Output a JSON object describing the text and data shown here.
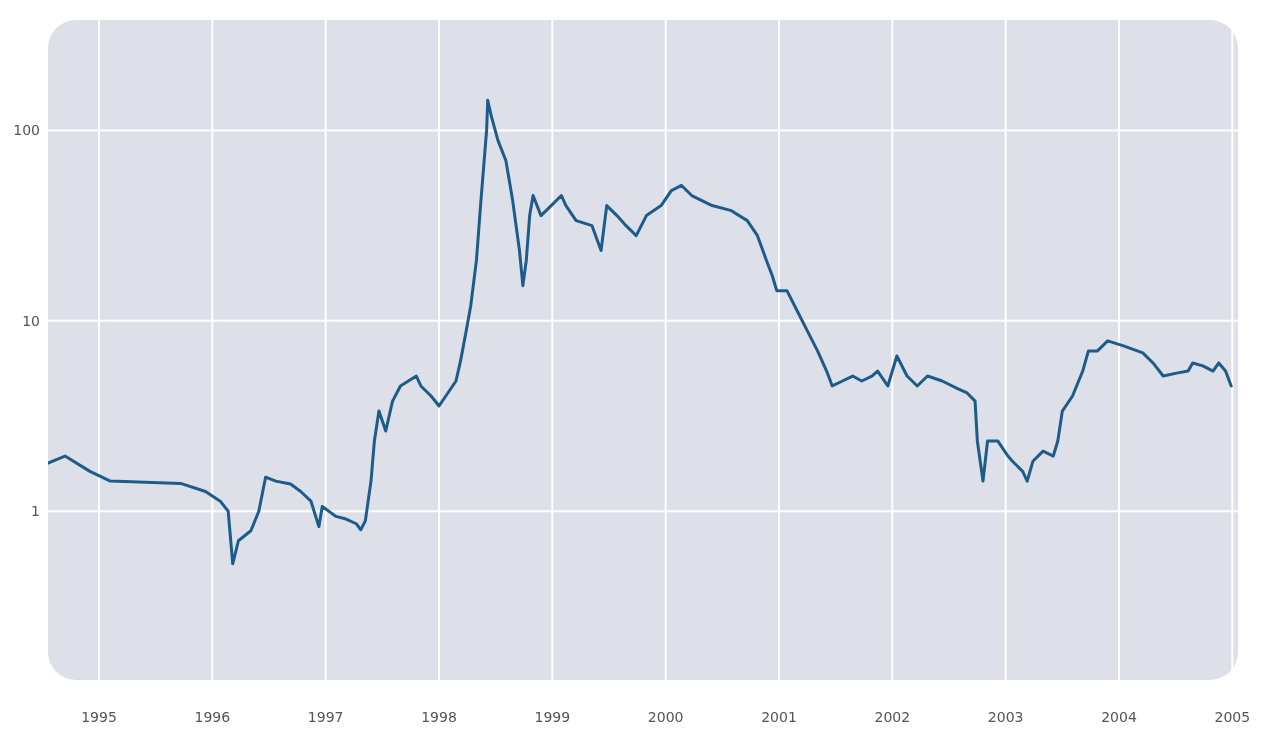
{
  "chart_data": {
    "type": "line",
    "log": "y",
    "grid": true,
    "xlim": [
      1994.55,
      2005.05
    ],
    "ylim": [
      0.13,
      380
    ],
    "xticks": [
      1995,
      1996,
      1997,
      1998,
      1999,
      2000,
      2001,
      2002,
      2003,
      2004,
      2005
    ],
    "yticks": [
      1,
      10,
      100
    ],
    "x": [
      1994.55,
      1994.7,
      1994.92,
      1995.1,
      1995.72,
      1995.94,
      1996.07,
      1996.14,
      1996.18,
      1996.23,
      1996.34,
      1996.41,
      1996.47,
      1996.56,
      1996.69,
      1996.78,
      1996.87,
      1996.94,
      1996.97,
      1997.09,
      1997.18,
      1997.27,
      1997.31,
      1997.35,
      1997.4,
      1997.43,
      1997.47,
      1997.53,
      1997.59,
      1997.66,
      1997.73,
      1997.8,
      1997.84,
      1997.93,
      1998.0,
      1998.06,
      1998.15,
      1998.19,
      1998.24,
      1998.28,
      1998.33,
      1998.37,
      1998.42,
      1998.43,
      1998.46,
      1998.52,
      1998.59,
      1998.65,
      1998.71,
      1998.74,
      1998.77,
      1998.8,
      1998.83,
      1998.9,
      1998.99,
      1999.08,
      1999.12,
      1999.21,
      1999.35,
      1999.43,
      1999.48,
      1999.57,
      1999.65,
      1999.74,
      1999.83,
      1999.96,
      2000.05,
      2000.14,
      2000.23,
      2000.32,
      2000.41,
      2000.58,
      2000.72,
      2000.81,
      2000.89,
      2000.94,
      2000.98,
      2001.07,
      2001.16,
      2001.25,
      2001.34,
      2001.42,
      2001.47,
      2001.56,
      2001.65,
      2001.73,
      2001.82,
      2001.87,
      2001.96,
      2002.04,
      2002.13,
      2002.22,
      2002.31,
      2002.44,
      2002.58,
      2002.66,
      2002.73,
      2002.75,
      2002.8,
      2002.84,
      2002.93,
      2003.02,
      2003.06,
      2003.15,
      2003.19,
      2003.24,
      2003.33,
      2003.42,
      2003.46,
      2003.5,
      2003.59,
      2003.68,
      2003.73,
      2003.81,
      2003.9,
      2004.04,
      2004.21,
      2004.3,
      2004.39,
      2004.52,
      2004.61,
      2004.65,
      2004.74,
      2004.83,
      2004.88,
      2004.94,
      2004.99
    ],
    "series": [
      {
        "color": "#1d5c8a",
        "values": [
          1.79,
          1.95,
          1.62,
          1.44,
          1.4,
          1.27,
          1.13,
          1.0,
          0.53,
          0.7,
          0.79,
          1.0,
          1.51,
          1.44,
          1.39,
          1.27,
          1.13,
          0.83,
          1.06,
          0.94,
          0.91,
          0.86,
          0.8,
          0.89,
          1.44,
          2.34,
          3.36,
          2.64,
          3.79,
          4.55,
          4.83,
          5.13,
          4.55,
          4.03,
          3.57,
          4.03,
          4.83,
          6.16,
          8.86,
          12.0,
          20.7,
          42.8,
          100,
          144,
          120,
          88.6,
          69.5,
          42.8,
          23.4,
          15.3,
          20.7,
          35.7,
          45.5,
          35.7,
          40.3,
          45.5,
          40.3,
          33.6,
          31.6,
          23.4,
          40.3,
          35.7,
          31.6,
          28.0,
          35.7,
          40.3,
          48.3,
          51.4,
          45.5,
          42.8,
          40.3,
          37.9,
          33.6,
          28.0,
          20.7,
          17.3,
          14.4,
          14.4,
          11.3,
          8.86,
          6.95,
          5.45,
          4.55,
          4.83,
          5.13,
          4.83,
          5.13,
          5.45,
          4.55,
          6.54,
          5.13,
          4.55,
          5.13,
          4.83,
          4.39,
          4.18,
          3.79,
          2.34,
          1.44,
          2.34,
          2.34,
          1.95,
          1.83,
          1.62,
          1.44,
          1.83,
          2.07,
          1.95,
          2.34,
          3.36,
          4.03,
          5.45,
          6.95,
          6.95,
          7.85,
          7.39,
          6.79,
          6.01,
          5.13,
          5.33,
          5.45,
          6.01,
          5.8,
          5.45,
          6.01,
          5.45,
          4.55
        ]
      }
    ]
  }
}
